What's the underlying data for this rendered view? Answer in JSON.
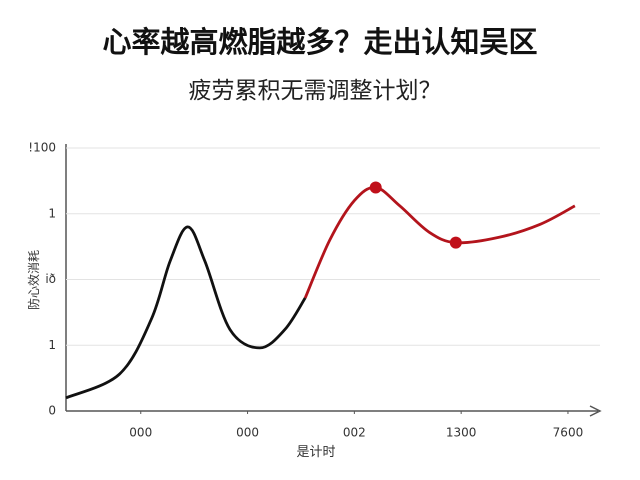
{
  "chart_data": {
    "type": "line",
    "title": "心率越高燃脂越多？走出认知吴区",
    "subtitle": "疲劳累积无需调整计划？",
    "x_label": "是计时",
    "y_label": "防心效消耗",
    "xlim": [
      0,
      100
    ],
    "ylim": [
      0,
      100
    ],
    "xticks": [
      {
        "value": 14,
        "label": "000"
      },
      {
        "value": 34,
        "label": "000"
      },
      {
        "value": 54,
        "label": "002"
      },
      {
        "value": 74,
        "label": "1300"
      },
      {
        "value": 94,
        "label": "7600"
      }
    ],
    "yticks": [
      0,
      {
        "value": 25,
        "label": "1"
      },
      {
        "value": 50,
        "label": "ið"
      },
      {
        "value": 75,
        "label": "1"
      },
      {
        "value": 100,
        "label": "!100"
      }
    ],
    "grid": true,
    "series": [
      {
        "color": "#111111",
        "x": [
          0,
          10,
          16,
          19.5,
          22.8,
          26,
          30.7,
          36.3,
          41,
          44.8
        ],
        "values": [
          5,
          14,
          35,
          57,
          70,
          57,
          31,
          24,
          31,
          43
        ]
      },
      {
        "color": "#b3141c",
        "x": [
          44.8,
          49.4,
          54,
          58,
          62.5,
          68,
          73,
          81,
          88.8,
          95.3
        ],
        "values": [
          43,
          65,
          80,
          85,
          78,
          68,
          64,
          66,
          71,
          78
        ]
      }
    ],
    "highlights": {
      "color": "#c0101a",
      "x": [
        58,
        73
      ],
      "values": [
        85,
        64
      ]
    }
  }
}
